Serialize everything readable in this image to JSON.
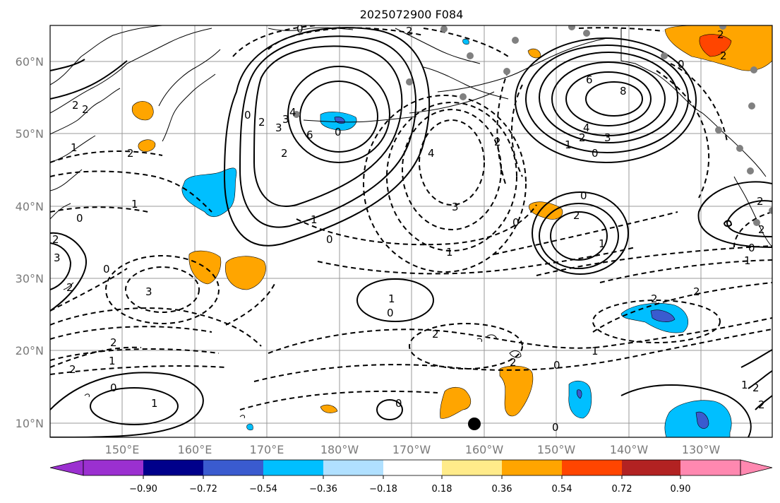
{
  "title": "2025072900 F084",
  "lon_labels": [
    "150°E",
    "160°E",
    "170°E",
    "180°W",
    "170°W",
    "160°W",
    "150°W",
    "140°W",
    "130°W"
  ],
  "lat_labels": [
    "60°N",
    "50°N",
    "40°N",
    "30°N",
    "20°N",
    "10°N"
  ],
  "colorbar": {
    "ticks": [
      "−0.90",
      "−0.72",
      "−0.54",
      "−0.36",
      "−0.18",
      "0.18",
      "0.36",
      "0.54",
      "0.72",
      "0.90"
    ],
    "colors": [
      "#9b30d0",
      "#00008b",
      "#3a5bcf",
      "#00bfff",
      "#b0e0ff",
      "#ffffff",
      "#ffeb8a",
      "#ffa500",
      "#ff4500",
      "#b22222",
      "#ff88b0"
    ]
  },
  "contour_labels": {
    "l1": "0",
    "l2": "2",
    "l3": "2",
    "l4": "2",
    "l5": "2",
    "l6": "2",
    "l7": "1",
    "l8": "2",
    "l9": "0",
    "l10": "2",
    "l11": "3",
    "l12": "3",
    "l13": "4",
    "l14": "6",
    "l15": "0",
    "l16": "2",
    "l17": "1",
    "l18": "0",
    "l19": "4",
    "l20": "3",
    "l21": "0",
    "l22": "1",
    "l23": "2",
    "l24": "6",
    "l25": "8",
    "l26": "4",
    "l27": "3",
    "l28": "2",
    "l29": "1",
    "l30": "0",
    "l31": "0",
    "l32": "2",
    "l33": "1",
    "l34": "3",
    "l35": "1",
    "l36": "0",
    "l37": "2",
    "l38": "2",
    "l39": "2",
    "l40": "1",
    "l41": "0",
    "l42": "1",
    "l43": "0",
    "l44": "0",
    "l45": "2",
    "l46": "1",
    "l47": "0",
    "l48": "1",
    "l49": "2",
    "l50": "2",
    "l51": "0",
    "l52": "0",
    "l53": "2",
    "l54": "1",
    "l55": "2",
    "l56": "0",
    "l57": "1",
    "l58": "2",
    "l59": "2",
    "l60": "3",
    "l61": "2",
    "l62": "0",
    "l63": "2"
  }
}
